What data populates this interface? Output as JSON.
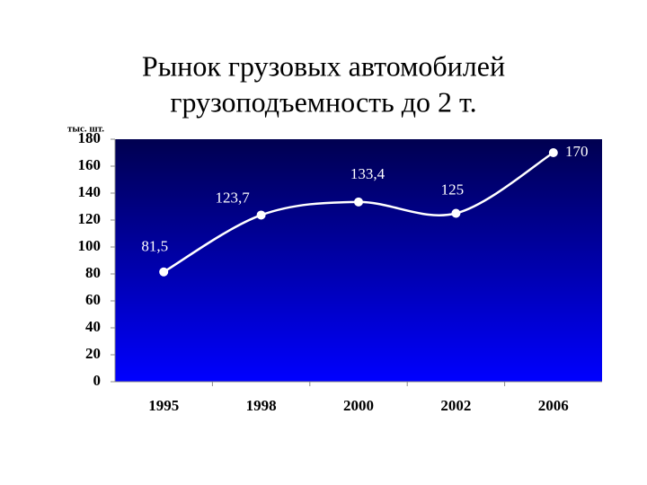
{
  "chart_data": {
    "type": "line",
    "title": [
      "Рынок грузовых автомобилей",
      "грузоподъемность до 2 т."
    ],
    "y_label": "тыс. шт.",
    "categories": [
      "1995",
      "1998",
      "2000",
      "2002",
      "2006"
    ],
    "values": [
      81.5,
      123.7,
      133.4,
      125,
      170
    ],
    "value_labels": [
      "81,5",
      "123,7",
      "133,4",
      "125",
      "170"
    ],
    "color": "#ffffff",
    "background": [
      "#000050",
      "#0000ff"
    ],
    "ylim": [
      0,
      180
    ],
    "yticks": [
      0,
      20,
      40,
      60,
      80,
      100,
      120,
      140,
      160,
      180
    ]
  }
}
